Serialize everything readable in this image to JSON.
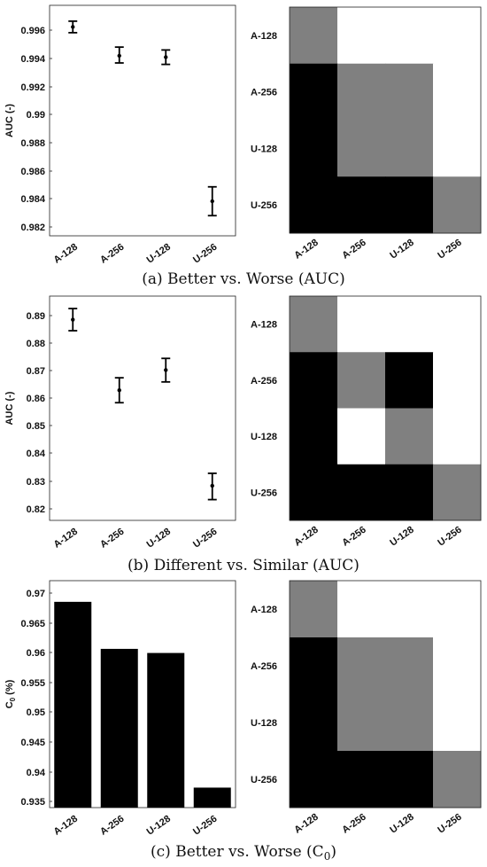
{
  "panels": [
    {
      "caption": "(a) Better vs. Worse (AUC)",
      "chart": {
        "type": "scatter",
        "categories": [
          "A-128",
          "A-256",
          "U-128",
          "U-256"
        ],
        "values": [
          0.996,
          0.994,
          0.9939,
          0.9839
        ],
        "err_low": [
          0.9956,
          0.9935,
          0.9934,
          0.9829
        ],
        "err_high": [
          0.9964,
          0.9946,
          0.9944,
          0.9849
        ],
        "ylabel": "AUC (-)",
        "yticks": [
          "0.996",
          "0.994",
          "0.992",
          "0.99",
          "0.988",
          "0.986",
          "0.984",
          "0.982"
        ],
        "ylim": [
          0.9815,
          0.9975
        ]
      },
      "matrix": {
        "type": "heatmap",
        "row_labels": [
          "A-128",
          "A-256",
          "U-128",
          "U-256"
        ],
        "col_labels": [
          "A-128",
          "A-256",
          "U-128",
          "U-256"
        ],
        "cells": [
          [
            "gray",
            "white",
            "white",
            "white"
          ],
          [
            "black",
            "gray",
            "gray",
            "white"
          ],
          [
            "black",
            "gray",
            "gray",
            "white"
          ],
          [
            "black",
            "black",
            "black",
            "gray"
          ]
        ]
      }
    },
    {
      "caption": "(b) Different vs. Similar (AUC)",
      "chart": {
        "type": "scatter",
        "categories": [
          "A-128",
          "A-256",
          "U-128",
          "U-256"
        ],
        "values": [
          0.888,
          0.8625,
          0.8698,
          0.828
        ],
        "err_low": [
          0.884,
          0.858,
          0.8655,
          0.823
        ],
        "err_high": [
          0.892,
          0.867,
          0.874,
          0.8325
        ],
        "ylabel": "AUC (-)",
        "yticks": [
          "0.89",
          "0.88",
          "0.87",
          "0.86",
          "0.85",
          "0.84",
          "0.83",
          "0.82"
        ],
        "ylim": [
          0.8155,
          0.8965
        ]
      },
      "matrix": {
        "type": "heatmap",
        "row_labels": [
          "A-128",
          "A-256",
          "U-128",
          "U-256"
        ],
        "col_labels": [
          "A-128",
          "A-256",
          "U-128",
          "U-256"
        ],
        "cells": [
          [
            "gray",
            "white",
            "white",
            "white"
          ],
          [
            "black",
            "gray",
            "black",
            "white"
          ],
          [
            "black",
            "white",
            "gray",
            "white"
          ],
          [
            "black",
            "black",
            "black",
            "gray"
          ]
        ]
      }
    },
    {
      "caption": "(c) Better vs. Worse (C",
      "caption_sub": "0",
      "caption_end": ")",
      "chart": {
        "type": "bar",
        "categories": [
          "A-128",
          "A-256",
          "U-128",
          "U-256"
        ],
        "values": [
          0.9682,
          0.9602,
          0.9595,
          0.9366
        ],
        "ylabel": "C",
        "ylabel_sub": "0",
        "ylabel_end": " (%)",
        "yticks": [
          "0.97",
          "0.965",
          "0.96",
          "0.955",
          "0.95",
          "0.945",
          "0.94",
          "0.935"
        ],
        "ylim": [
          0.9332,
          0.9718
        ]
      },
      "matrix": {
        "type": "heatmap",
        "row_labels": [
          "A-128",
          "A-256",
          "U-128",
          "U-256"
        ],
        "col_labels": [
          "A-128",
          "A-256",
          "U-128",
          "U-256"
        ],
        "cells": [
          [
            "gray",
            "white",
            "white",
            "white"
          ],
          [
            "black",
            "gray",
            "gray",
            "white"
          ],
          [
            "black",
            "gray",
            "gray",
            "white"
          ],
          [
            "black",
            "black",
            "black",
            "gray"
          ]
        ]
      }
    }
  ],
  "colors": {
    "black": "#000000",
    "gray": "#808080",
    "white": "#ffffff"
  }
}
